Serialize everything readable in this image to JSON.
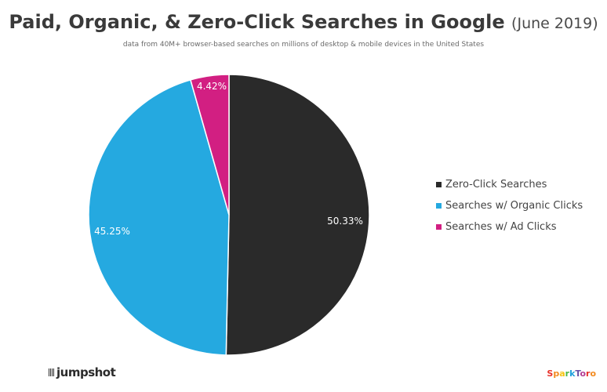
{
  "header": {
    "title": "Paid, Organic, & Zero-Click Searches in Google",
    "title_date": "(June 2019)",
    "subtitle": "data from 40M+ browser-based searches on millions of desktop & mobile devices in the United States"
  },
  "chart_data": {
    "type": "pie",
    "title": "Paid, Organic, & Zero-Click Searches in Google (June 2019)",
    "subtitle": "data from 40M+ browser-based searches on millions of desktop & mobile devices in the United States",
    "categories": [
      "Zero-Click Searches",
      "Searches w/ Organic Clicks",
      "Searches w/ Ad Clicks"
    ],
    "values": [
      50.33,
      45.25,
      4.42
    ],
    "value_labels": [
      "50.33%",
      "45.25%",
      "4.42%"
    ],
    "colors": [
      "#2a2a2a",
      "#25a9e0",
      "#d21f82"
    ],
    "legend_position": "right"
  },
  "logos": {
    "jumpshot": "jumpshot",
    "sparktoro": "SparkToro",
    "sparktoro_colors": [
      "#e8322b",
      "#f28a1e",
      "#f5c414",
      "#4cb848",
      "#1ea0dc",
      "#6a4fa3",
      "#b23a93",
      "#e8322b",
      "#f28a1e"
    ]
  }
}
